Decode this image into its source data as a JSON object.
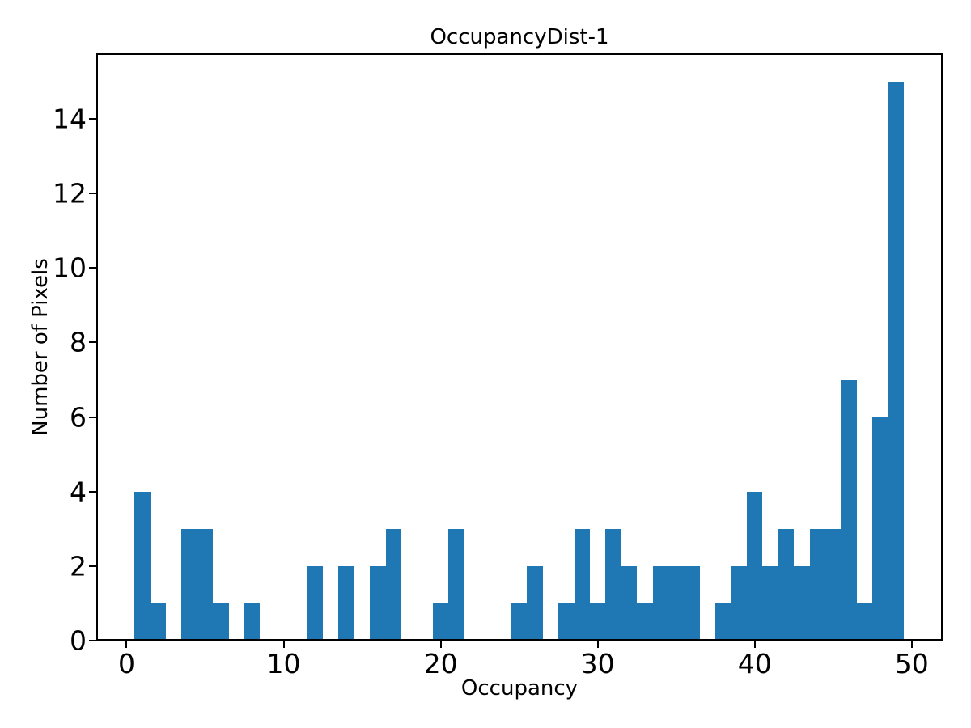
{
  "figure": {
    "background": "#ffffff"
  },
  "chart_data": {
    "type": "bar",
    "subtype": "histogram",
    "title": "OccupancyDist-1",
    "xlabel": "Occupancy",
    "ylabel": "Number of Pixels",
    "bar_color": "#1f77b4",
    "axis_color": "#000000",
    "text_color": "#000000",
    "grid": false,
    "legend": null,
    "xlim": [
      -1.93,
      51.97
    ],
    "ylim": [
      0,
      15.76
    ],
    "x_ticks": [
      0,
      10,
      20,
      30,
      40,
      50
    ],
    "y_ticks": [
      0,
      2,
      4,
      6,
      8,
      10,
      12,
      14
    ],
    "bin_width": 1,
    "bars": [
      {
        "center": 1,
        "count": 4
      },
      {
        "center": 2,
        "count": 1
      },
      {
        "center": 4,
        "count": 3
      },
      {
        "center": 5,
        "count": 3
      },
      {
        "center": 6,
        "count": 1
      },
      {
        "center": 8,
        "count": 1
      },
      {
        "center": 12,
        "count": 2
      },
      {
        "center": 14,
        "count": 2
      },
      {
        "center": 16,
        "count": 2
      },
      {
        "center": 17,
        "count": 3
      },
      {
        "center": 20,
        "count": 1
      },
      {
        "center": 21,
        "count": 3
      },
      {
        "center": 25,
        "count": 1
      },
      {
        "center": 26,
        "count": 2
      },
      {
        "center": 28,
        "count": 1
      },
      {
        "center": 29,
        "count": 3
      },
      {
        "center": 30,
        "count": 1
      },
      {
        "center": 31,
        "count": 3
      },
      {
        "center": 32,
        "count": 2
      },
      {
        "center": 33,
        "count": 1
      },
      {
        "center": 34,
        "count": 2
      },
      {
        "center": 35,
        "count": 2
      },
      {
        "center": 36,
        "count": 2
      },
      {
        "center": 38,
        "count": 1
      },
      {
        "center": 39,
        "count": 2
      },
      {
        "center": 40,
        "count": 4
      },
      {
        "center": 41,
        "count": 2
      },
      {
        "center": 42,
        "count": 3
      },
      {
        "center": 43,
        "count": 2
      },
      {
        "center": 44,
        "count": 3
      },
      {
        "center": 45,
        "count": 3
      },
      {
        "center": 46,
        "count": 7
      },
      {
        "center": 47,
        "count": 1
      },
      {
        "center": 48,
        "count": 6
      },
      {
        "center": 49,
        "count": 15
      }
    ]
  }
}
